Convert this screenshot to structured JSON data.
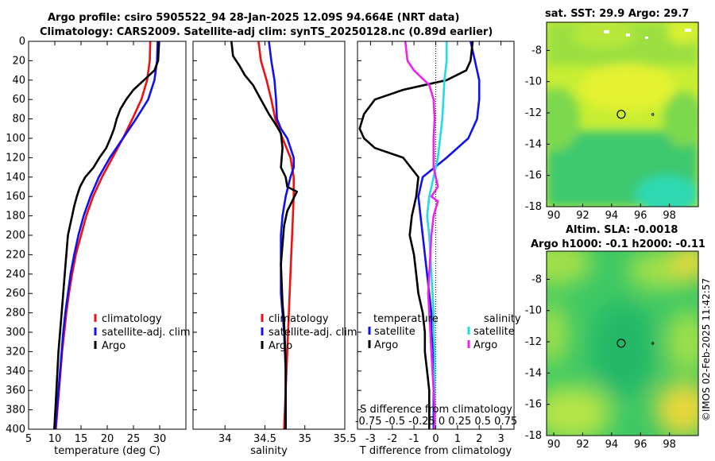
{
  "title": {
    "line1": "Argo profile: csiro 5905522_94 28-Jan-2025 12.09S 94.664E (NRT data)",
    "line2": "Climatology: CARS2009. Satellite-adj clim: synTS_20250128.nc (0.89d earlier)"
  },
  "colors": {
    "climatology": "#ee1111",
    "satellite": "#1111ee",
    "argo": "#000000",
    "sal_satellite": "#22dddd",
    "sal_argo": "#ee22ee"
  },
  "chart_data": [
    {
      "type": "line",
      "id": "temperature",
      "xlabel": "temperature (deg C)",
      "ylabel": "",
      "xlim": [
        5,
        35
      ],
      "ylim": [
        400,
        0
      ],
      "xticks": [
        5,
        10,
        15,
        20,
        25,
        30
      ],
      "yticks": [
        0,
        20,
        40,
        60,
        80,
        100,
        120,
        140,
        160,
        180,
        200,
        220,
        240,
        260,
        280,
        300,
        320,
        340,
        360,
        380,
        400
      ],
      "legend": [
        "climatology",
        "satellite-adj. clim",
        "Argo"
      ],
      "series": [
        {
          "name": "climatology",
          "color": "#ee1111",
          "points": [
            [
              28.2,
              0
            ],
            [
              28.1,
              20
            ],
            [
              27.6,
              40
            ],
            [
              26.5,
              60
            ],
            [
              24.8,
              80
            ],
            [
              23.0,
              100
            ],
            [
              21.0,
              120
            ],
            [
              19.0,
              140
            ],
            [
              17.3,
              160
            ],
            [
              16.0,
              180
            ],
            [
              15.0,
              200
            ],
            [
              14.0,
              220
            ],
            [
              13.3,
              240
            ],
            [
              12.7,
              260
            ],
            [
              12.2,
              280
            ],
            [
              11.8,
              300
            ],
            [
              11.4,
              320
            ],
            [
              11.1,
              340
            ],
            [
              10.8,
              360
            ],
            [
              10.5,
              380
            ],
            [
              10.2,
              400
            ]
          ]
        },
        {
          "name": "satellite-adj. clim",
          "color": "#1111ee",
          "points": [
            [
              29.6,
              0
            ],
            [
              29.5,
              20
            ],
            [
              29.0,
              40
            ],
            [
              27.8,
              60
            ],
            [
              25.5,
              80
            ],
            [
              23.0,
              100
            ],
            [
              20.5,
              120
            ],
            [
              18.4,
              140
            ],
            [
              16.8,
              160
            ],
            [
              15.5,
              180
            ],
            [
              14.5,
              200
            ],
            [
              13.7,
              220
            ],
            [
              13.0,
              240
            ],
            [
              12.5,
              260
            ],
            [
              12.0,
              280
            ],
            [
              11.6,
              300
            ],
            [
              11.3,
              320
            ],
            [
              11.0,
              340
            ],
            [
              10.7,
              360
            ],
            [
              10.4,
              380
            ],
            [
              10.1,
              400
            ]
          ]
        },
        {
          "name": "Argo",
          "color": "#000000",
          "points": [
            [
              29.9,
              0
            ],
            [
              29.7,
              20
            ],
            [
              29.0,
              30
            ],
            [
              27.0,
              40
            ],
            [
              25.0,
              50
            ],
            [
              23.6,
              60
            ],
            [
              22.5,
              70
            ],
            [
              21.8,
              80
            ],
            [
              21.3,
              90
            ],
            [
              20.6,
              100
            ],
            [
              19.8,
              110
            ],
            [
              18.5,
              120
            ],
            [
              17.4,
              130
            ],
            [
              15.8,
              140
            ],
            [
              14.8,
              150
            ],
            [
              14.2,
              160
            ],
            [
              13.7,
              170
            ],
            [
              13.3,
              180
            ],
            [
              12.9,
              190
            ],
            [
              12.5,
              200
            ],
            [
              12.2,
              220
            ],
            [
              11.9,
              240
            ],
            [
              11.6,
              260
            ],
            [
              11.3,
              280
            ],
            [
              11.0,
              300
            ],
            [
              10.7,
              320
            ],
            [
              10.5,
              340
            ],
            [
              10.3,
              360
            ],
            [
              10.1,
              380
            ],
            [
              9.9,
              400
            ]
          ]
        }
      ]
    },
    {
      "type": "line",
      "id": "salinity",
      "xlabel": "salinity",
      "xlim": [
        33.6,
        35.5
      ],
      "ylim": [
        400,
        0
      ],
      "xticks": [
        34,
        34.5,
        35,
        35.5
      ],
      "legend": [
        "climatology",
        "satellite-adj. clim",
        "Argo"
      ],
      "series": [
        {
          "name": "climatology",
          "color": "#ee1111",
          "points": [
            [
              34.42,
              0
            ],
            [
              34.45,
              20
            ],
            [
              34.52,
              40
            ],
            [
              34.58,
              60
            ],
            [
              34.63,
              80
            ],
            [
              34.72,
              100
            ],
            [
              34.82,
              120
            ],
            [
              34.86,
              140
            ],
            [
              34.86,
              160
            ],
            [
              34.85,
              180
            ],
            [
              34.84,
              200
            ],
            [
              34.83,
              220
            ],
            [
              34.82,
              240
            ],
            [
              34.81,
              260
            ],
            [
              34.8,
              280
            ],
            [
              34.79,
              300
            ],
            [
              34.78,
              320
            ],
            [
              34.77,
              340
            ],
            [
              34.76,
              360
            ],
            [
              34.75,
              380
            ],
            [
              34.74,
              400
            ]
          ]
        },
        {
          "name": "satellite-adj. clim",
          "color": "#1111ee",
          "points": [
            [
              34.55,
              0
            ],
            [
              34.58,
              20
            ],
            [
              34.62,
              40
            ],
            [
              34.64,
              60
            ],
            [
              34.65,
              80
            ],
            [
              34.7,
              90
            ],
            [
              34.78,
              100
            ],
            [
              34.86,
              120
            ],
            [
              34.86,
              130
            ],
            [
              34.82,
              140
            ],
            [
              34.76,
              160
            ],
            [
              34.72,
              180
            ],
            [
              34.7,
              200
            ],
            [
              34.7,
              220
            ],
            [
              34.7,
              240
            ],
            [
              34.7,
              260
            ],
            [
              34.72,
              280
            ],
            [
              34.74,
              300
            ],
            [
              34.75,
              320
            ],
            [
              34.76,
              340
            ],
            [
              34.76,
              360
            ],
            [
              34.76,
              380
            ],
            [
              34.76,
              400
            ]
          ]
        },
        {
          "name": "Argo",
          "color": "#000000",
          "points": [
            [
              34.08,
              0
            ],
            [
              34.1,
              15
            ],
            [
              34.18,
              25
            ],
            [
              34.25,
              35
            ],
            [
              34.35,
              45
            ],
            [
              34.45,
              60
            ],
            [
              34.55,
              75
            ],
            [
              34.63,
              85
            ],
            [
              34.7,
              95
            ],
            [
              34.72,
              110
            ],
            [
              34.7,
              130
            ],
            [
              34.76,
              140
            ],
            [
              34.78,
              150
            ],
            [
              34.9,
              155
            ],
            [
              34.84,
              165
            ],
            [
              34.78,
              175
            ],
            [
              34.74,
              190
            ],
            [
              34.72,
              210
            ],
            [
              34.7,
              230
            ],
            [
              34.71,
              250
            ],
            [
              34.72,
              270
            ],
            [
              34.74,
              290
            ],
            [
              34.75,
              310
            ],
            [
              34.76,
              330
            ],
            [
              34.76,
              350
            ],
            [
              34.76,
              370
            ],
            [
              34.76,
              400
            ]
          ]
        }
      ]
    },
    {
      "type": "line",
      "id": "difference",
      "xlabel": "T difference from climatology",
      "xlim": [
        -3.6,
        3.6
      ],
      "ylim": [
        400,
        0
      ],
      "xticks": [
        -3,
        -2,
        -1,
        0,
        1,
        2,
        3
      ],
      "legend_titles": [
        "temperature",
        "salinity"
      ],
      "legend": [
        "satellite",
        "Argo",
        "satellite",
        "Argo"
      ],
      "annotation_line1": "S difference from climatology",
      "annotation_line2": "-0.75 -0.5 -0.25 0 0.25 0.5 0.75",
      "series": [
        {
          "name": "temperature satellite",
          "color": "#1111ee",
          "points": [
            [
              1.6,
              0
            ],
            [
              1.8,
              20
            ],
            [
              2.0,
              40
            ],
            [
              2.0,
              60
            ],
            [
              1.9,
              80
            ],
            [
              1.5,
              100
            ],
            [
              0.5,
              120
            ],
            [
              -0.6,
              140
            ],
            [
              -0.8,
              160
            ],
            [
              -0.7,
              180
            ],
            [
              -0.6,
              200
            ],
            [
              -0.5,
              220
            ],
            [
              -0.4,
              240
            ],
            [
              -0.3,
              260
            ],
            [
              -0.2,
              280
            ],
            [
              -0.2,
              300
            ],
            [
              -0.1,
              320
            ],
            [
              -0.1,
              340
            ],
            [
              -0.1,
              360
            ],
            [
              -0.1,
              380
            ],
            [
              -0.1,
              400
            ]
          ]
        },
        {
          "name": "temperature Argo",
          "color": "#000000",
          "points": [
            [
              1.7,
              0
            ],
            [
              1.6,
              20
            ],
            [
              1.4,
              30
            ],
            [
              0.5,
              40
            ],
            [
              -1.5,
              50
            ],
            [
              -2.8,
              60
            ],
            [
              -3.3,
              75
            ],
            [
              -3.5,
              90
            ],
            [
              -3.3,
              100
            ],
            [
              -2.8,
              110
            ],
            [
              -1.5,
              120
            ],
            [
              -0.8,
              140
            ],
            [
              -0.9,
              160
            ],
            [
              -1.1,
              180
            ],
            [
              -1.2,
              200
            ],
            [
              -1.0,
              220
            ],
            [
              -0.9,
              240
            ],
            [
              -0.8,
              260
            ],
            [
              -0.6,
              280
            ],
            [
              -0.5,
              300
            ],
            [
              -0.5,
              320
            ],
            [
              -0.4,
              340
            ],
            [
              -0.3,
              360
            ],
            [
              -0.3,
              380
            ],
            [
              -0.3,
              400
            ]
          ]
        },
        {
          "name": "salinity satellite",
          "color": "#22dddd",
          "points": [
            [
              0.5,
              0
            ],
            [
              0.5,
              20
            ],
            [
              0.4,
              40
            ],
            [
              0.35,
              60
            ],
            [
              0.3,
              80
            ],
            [
              0.2,
              100
            ],
            [
              0.1,
              120
            ],
            [
              -0.1,
              140
            ],
            [
              -0.3,
              160
            ],
            [
              -0.4,
              180
            ],
            [
              -0.3,
              200
            ],
            [
              -0.25,
              220
            ],
            [
              -0.2,
              240
            ],
            [
              -0.15,
              260
            ],
            [
              -0.1,
              280
            ],
            [
              -0.1,
              300
            ],
            [
              -0.05,
              320
            ],
            [
              -0.05,
              340
            ],
            [
              -0.05,
              360
            ],
            [
              -0.05,
              380
            ],
            [
              -0.05,
              400
            ]
          ]
        },
        {
          "name": "salinity Argo",
          "color": "#ee22ee",
          "points": [
            [
              -1.4,
              0
            ],
            [
              -1.3,
              20
            ],
            [
              -1.0,
              30
            ],
            [
              -0.3,
              45
            ],
            [
              -0.1,
              60
            ],
            [
              -0.05,
              80
            ],
            [
              -0.1,
              100
            ],
            [
              -0.1,
              130
            ],
            [
              0.1,
              150
            ],
            [
              -0.2,
              160
            ],
            [
              0.1,
              165
            ],
            [
              -0.1,
              180
            ],
            [
              -0.2,
              200
            ],
            [
              -0.25,
              220
            ],
            [
              -0.3,
              240
            ],
            [
              -0.35,
              260
            ],
            [
              -0.3,
              280
            ],
            [
              -0.25,
              300
            ],
            [
              -0.2,
              320
            ],
            [
              -0.15,
              340
            ],
            [
              -0.1,
              360
            ],
            [
              -0.05,
              380
            ],
            [
              -0.05,
              400
            ]
          ]
        }
      ]
    },
    {
      "type": "heatmap",
      "id": "sst_map",
      "title": "sat. SST: 29.9 Argo: 29.7",
      "xlim": [
        89.5,
        100
      ],
      "ylim": [
        -18,
        -6.2
      ],
      "xticks": [
        90,
        92,
        94,
        96,
        98
      ],
      "yticks": [
        -8,
        -10,
        -12,
        -14,
        -16,
        -18
      ],
      "argo_position": [
        94.664,
        -12.09
      ]
    },
    {
      "type": "heatmap",
      "id": "sla_map",
      "title_line1": "Altim. SLA: -0.0018",
      "title_line2": "Argo h1000: -0.1 h2000: -0.11",
      "xlim": [
        89.5,
        100
      ],
      "ylim": [
        -18,
        -6.2
      ],
      "xticks": [
        90,
        92,
        94,
        96,
        98
      ],
      "yticks": [
        -8,
        -10,
        -12,
        -14,
        -16,
        -18
      ],
      "argo_position": [
        94.664,
        -12.09
      ]
    }
  ],
  "watermark": "©IMOS 02-Feb-2025 11:42:57"
}
